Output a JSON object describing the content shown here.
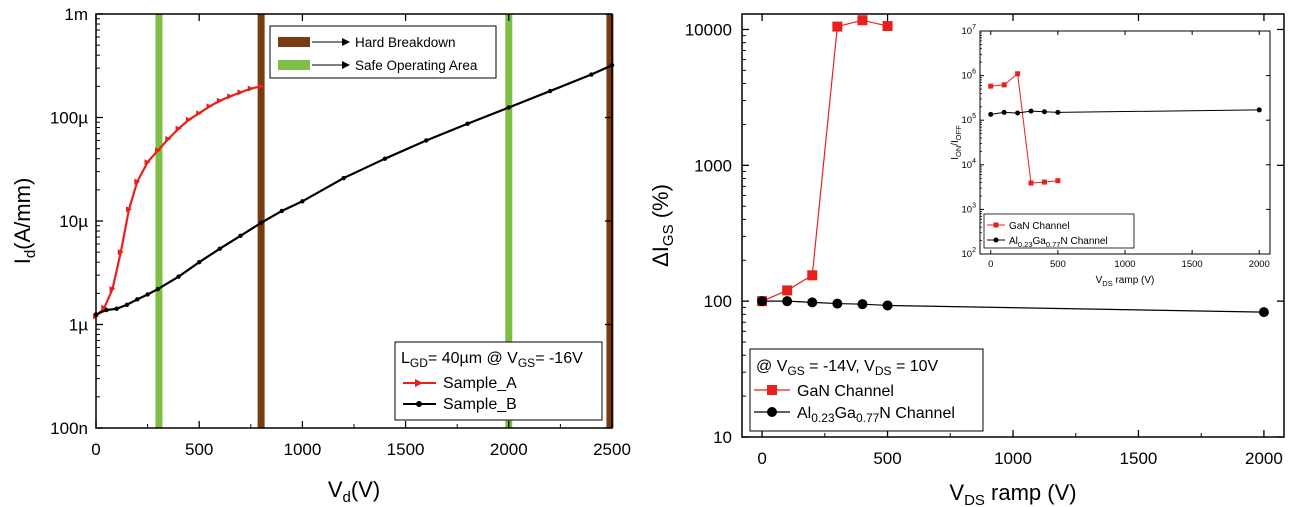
{
  "chart_data": [
    {
      "type": "line",
      "xlabel": "V",
      "xlabel_sub": "d",
      "xlabel_suffix": "(V)",
      "ylabel": "I",
      "ylabel_sub": "d",
      "ylabel_suffix": "(A/mm)",
      "yscale": "log",
      "xlim": [
        0,
        2500
      ],
      "ylim": [
        1e-07,
        0.001
      ],
      "x_ticks": [
        "0",
        "500",
        "1000",
        "1500",
        "2000",
        "2500"
      ],
      "y_ticks": [
        "100n",
        "1µ",
        "10µ",
        "100µ",
        "1m"
      ],
      "vlines": [
        {
          "x": 305,
          "kind": "safe",
          "color": "#7dbf45"
        },
        {
          "x": 800,
          "kind": "breakdown",
          "color": "#7a3b10"
        },
        {
          "x": 2000,
          "kind": "safe",
          "color": "#7dbf45"
        },
        {
          "x": 2490,
          "kind": "breakdown",
          "color": "#7a3b10"
        }
      ],
      "legend_top": {
        "placement": "top-right",
        "items": [
          {
            "label": "Hard Breakdown",
            "color": "#7a3b10"
          },
          {
            "label": "Safe Operating Area",
            "color": "#7dbf45"
          }
        ]
      },
      "legend_bottom": {
        "placement": "bottom-right",
        "header": {
          "a": "L",
          "a_sub": "GD",
          "b": "= 40µm @ V",
          "b_sub": "GS",
          "c": "= -16V"
        }
      },
      "series": [
        {
          "name": "Sample_A",
          "color": "#e8201c",
          "marker": "triangle",
          "x": [
            0,
            40,
            80,
            120,
            160,
            200,
            250,
            300,
            350,
            400,
            450,
            500,
            550,
            600,
            650,
            700,
            750,
            800
          ],
          "y": [
            1.2e-06,
            1.45e-06,
            2.2e-06,
            5e-06,
            1.3e-05,
            2.4e-05,
            3.7e-05,
            4.8e-05,
            6.2e-05,
            7.8e-05,
            9.5e-05,
            0.00011,
            0.000128,
            0.000145,
            0.00016,
            0.000175,
            0.00019,
            0.0002
          ]
        },
        {
          "name": "Sample_B",
          "color": "#000000",
          "marker": "circle",
          "x": [
            0,
            50,
            100,
            150,
            200,
            250,
            300,
            400,
            500,
            600,
            700,
            800,
            900,
            1000,
            1200,
            1400,
            1600,
            1800,
            2000,
            2200,
            2400,
            2500
          ],
          "y": [
            1.25e-06,
            1.38e-06,
            1.42e-06,
            1.55e-06,
            1.75e-06,
            1.95e-06,
            2.2e-06,
            2.9e-06,
            4e-06,
            5.4e-06,
            7.2e-06,
            9.6e-06,
            1.25e-05,
            1.55e-05,
            2.6e-05,
            4e-05,
            6e-05,
            8.7e-05,
            0.000125,
            0.00018,
            0.00026,
            0.00032
          ]
        }
      ]
    },
    {
      "type": "line",
      "xlabel": "V",
      "xlabel_sub": "DS",
      "xlabel_suffix": " ramp (V)",
      "ylabel": "ΔI",
      "ylabel_sub": "GS",
      "ylabel_suffix": " (%)",
      "yscale": "log",
      "xlim": [
        -80,
        2080
      ],
      "ylim": [
        10,
        13000
      ],
      "x_ticks": [
        "0",
        "500",
        "1000",
        "1500",
        "2000"
      ],
      "x_tick_values": [
        0,
        500,
        1000,
        1500,
        2000
      ],
      "y_ticks": [
        "10",
        "100",
        "1000",
        "10000"
      ],
      "legend": {
        "placement": "bottom-left",
        "header": {
          "a": "@ V",
          "a_sub": "GS",
          "b": " = -14V, V",
          "b_sub": "DS",
          "c": " = 10V"
        }
      },
      "series": [
        {
          "name": "GaN Channel",
          "color": "#e8201c",
          "marker": "square",
          "x": [
            0,
            100,
            200,
            300,
            400,
            500
          ],
          "y": [
            100,
            120,
            155,
            10500,
            11700,
            10600
          ]
        },
        {
          "name": "Al0.23Ga0.77N Channel",
          "name_parts": {
            "a": "Al",
            "a_sub": "0.23",
            "b": "Ga",
            "b_sub": "0.77",
            "c": "N Channel"
          },
          "color": "#000000",
          "marker": "circle",
          "x": [
            0,
            100,
            200,
            300,
            400,
            500,
            2000
          ],
          "y": [
            100,
            100,
            98,
            96,
            95,
            93,
            83
          ]
        }
      ],
      "inset": {
        "type": "line",
        "xlabel": "V",
        "xlabel_sub": "DS",
        "xlabel_suffix": " ramp (V)",
        "ylabel": "I",
        "ylabel_sub": "ON",
        "ylabel_mid": "/I",
        "ylabel_sub2": "OFF",
        "yscale": "log",
        "xlim": [
          -80,
          2080
        ],
        "ylim": [
          100,
          10000000.0
        ],
        "x_ticks": [
          "0",
          "500",
          "1000",
          "1500",
          "2000"
        ],
        "x_tick_values": [
          0,
          500,
          1000,
          1500,
          2000
        ],
        "y_ticks": [
          {
            "base": "10",
            "exp": "2"
          },
          {
            "base": "10",
            "exp": "3"
          },
          {
            "base": "10",
            "exp": "4"
          },
          {
            "base": "10",
            "exp": "5"
          },
          {
            "base": "10",
            "exp": "6"
          },
          {
            "base": "10",
            "exp": "7"
          }
        ],
        "legend": {
          "placement": "bottom-left"
        },
        "series": [
          {
            "name": "GaN Channel",
            "color": "#e8201c",
            "marker": "square",
            "x": [
              0,
              100,
              200,
              300,
              400,
              500
            ],
            "y": [
              580000.0,
              620000.0,
              1100000.0,
              3900,
              4100,
              4400
            ]
          },
          {
            "name": "Al0.23Ga0.77N Channel",
            "name_parts": {
              "a": "Al",
              "a_sub": "0.23",
              "b": "Ga",
              "b_sub": "0.77",
              "c": "N Channel"
            },
            "color": "#000000",
            "marker": "circle",
            "x": [
              0,
              100,
              200,
              300,
              400,
              500,
              2000
            ],
            "y": [
              135000.0,
              150000.0,
              145000.0,
              160000.0,
              155000.0,
              150000.0,
              170000.0
            ]
          }
        ]
      }
    }
  ]
}
